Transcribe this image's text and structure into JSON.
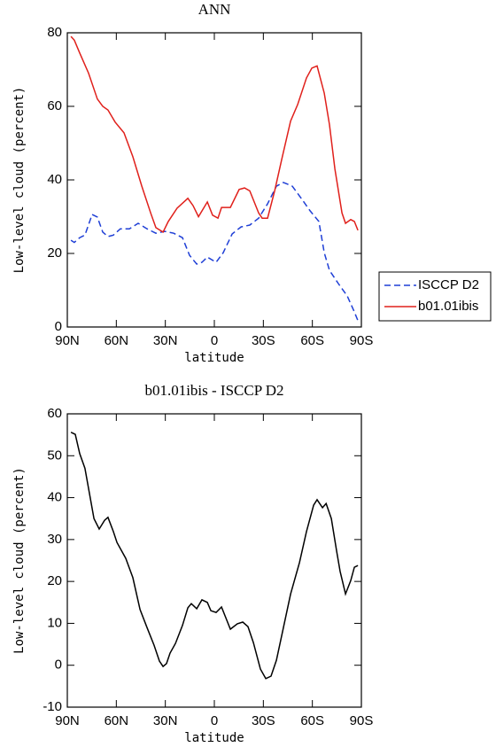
{
  "chart_data": [
    {
      "type": "line",
      "title": "ANN",
      "xlabel": "latitude",
      "ylabel": "Low-level cloud (percent)",
      "xlim": [
        90,
        -90
      ],
      "xticks": [
        {
          "value": 90,
          "label": "90N"
        },
        {
          "value": 60,
          "label": "60N"
        },
        {
          "value": 30,
          "label": "30N"
        },
        0,
        {
          "value": -30,
          "label": "30S"
        },
        {
          "value": -60,
          "label": "60S"
        },
        {
          "value": -90,
          "label": "90S"
        }
      ],
      "ylim": [
        0,
        80
      ],
      "yticks": [
        0,
        20,
        40,
        60,
        80
      ],
      "legend": "right",
      "series": [
        {
          "name": "ISCCP D2",
          "color": "#1f3fd6",
          "dashed": true,
          "x": [
            87.8,
            85.7,
            82.4,
            79.2,
            74.8,
            71.6,
            68.3,
            65.1,
            61.8,
            57.5,
            52,
            46.6,
            41.2,
            35.8,
            30.3,
            24.9,
            19.5,
            15.2,
            10.8,
            7.6,
            4.3,
            -1.1,
            -5.4,
            -10.9,
            -16.3,
            -21.7,
            -27.1,
            -32.6,
            -38,
            -42.3,
            -47.7,
            -53.2,
            -58.6,
            -64,
            -67.3,
            -70.5,
            -75.9,
            -81.4,
            -85.7,
            -87.9
          ],
          "values": [
            23.6,
            23,
            24.3,
            25,
            30.6,
            29.9,
            25.8,
            24.6,
            25,
            26.7,
            26.7,
            28.2,
            26.7,
            25.5,
            26,
            25.5,
            24.3,
            19.5,
            17.1,
            17.6,
            19,
            17.6,
            20.2,
            25.3,
            27.2,
            27.7,
            29.6,
            33.5,
            38.3,
            39.3,
            38.3,
            35,
            31.6,
            28.7,
            20.2,
            15.4,
            11.8,
            8.4,
            4.1,
            1.7
          ]
        },
        {
          "name": "b01.01ibis",
          "color": "#e0201b",
          "dashed": false,
          "x": [
            87.8,
            85.7,
            82.4,
            77,
            71.6,
            68.3,
            65.1,
            60.7,
            55.3,
            49.9,
            44.4,
            39,
            35.8,
            31.4,
            28.2,
            22.8,
            16.2,
            13,
            9.7,
            4.3,
            1.1,
            -2.2,
            -4.4,
            -9.8,
            -15.2,
            -18.5,
            -21.7,
            -27.1,
            -29.3,
            -32.6,
            -36.9,
            -41.2,
            -46.7,
            -51,
            -56.4,
            -59.7,
            -62.9,
            -67.3,
            -70.5,
            -73.8,
            -78.1,
            -80.3,
            -83.5,
            -85.7,
            -87.9
          ],
          "values": [
            79,
            78,
            74.5,
            69,
            62,
            60,
            59,
            55.7,
            52.8,
            46.3,
            38.3,
            31,
            27,
            25.8,
            28.7,
            32.3,
            35,
            33,
            30,
            34,
            30.4,
            29.6,
            32.5,
            32.5,
            37.4,
            37.8,
            37,
            31,
            29.6,
            29.6,
            37,
            45.5,
            56,
            60.5,
            67.7,
            70.4,
            71,
            63.6,
            55,
            43,
            31,
            28.2,
            29.2,
            28.7,
            26.3
          ]
        }
      ]
    },
    {
      "type": "line",
      "title": "b01.01ibis - ISCCP D2",
      "xlabel": "latitude",
      "ylabel": "Low-level cloud (percent)",
      "xlim": [
        90,
        -90
      ],
      "xticks": [
        {
          "value": 90,
          "label": "90N"
        },
        {
          "value": 60,
          "label": "60N"
        },
        {
          "value": 30,
          "label": "30N"
        },
        0,
        {
          "value": -30,
          "label": "30S"
        },
        {
          "value": -60,
          "label": "60S"
        },
        {
          "value": -90,
          "label": "90S"
        }
      ],
      "ylim": [
        -10,
        60
      ],
      "yticks": [
        -10,
        0,
        10,
        20,
        30,
        40,
        50,
        60
      ],
      "series": [
        {
          "color": "#000000",
          "dashed": false,
          "x": [
            87.8,
            85.1,
            82.4,
            79.2,
            73.7,
            70.5,
            67.2,
            65.1,
            61.8,
            59.6,
            54.2,
            49.9,
            45.5,
            41.2,
            36.9,
            33.6,
            31.4,
            29.3,
            27.1,
            23.8,
            19.5,
            16.2,
            14.1,
            10.8,
            7.6,
            4.3,
            2.1,
            -1.1,
            -4.4,
            -9.8,
            -14.1,
            -17.4,
            -20.6,
            -23.9,
            -28.2,
            -31.5,
            -34.7,
            -38,
            -42.3,
            -46.7,
            -52.1,
            -56.4,
            -60.8,
            -62.9,
            -66.2,
            -68.4,
            -71.6,
            -74.9,
            -77,
            -80.3,
            -83.5,
            -85.7,
            -87.9
          ],
          "values": [
            55.6,
            55.1,
            50.5,
            47,
            35,
            32.5,
            34.6,
            35.3,
            31.9,
            29.3,
            25.5,
            20.9,
            13.3,
            9,
            4.8,
            1,
            -0.3,
            0.4,
            2.9,
            5.2,
            9.5,
            13.7,
            14.7,
            13.5,
            15.6,
            15,
            13,
            12.6,
            13.9,
            8.6,
            9.9,
            10.3,
            9.2,
            5.4,
            -0.9,
            -3.2,
            -2.6,
            1.2,
            9,
            17,
            24.5,
            31.9,
            38.2,
            39.5,
            37.6,
            38.6,
            35,
            27.2,
            22.4,
            17,
            20.2,
            23.4,
            23.8
          ]
        }
      ]
    }
  ]
}
